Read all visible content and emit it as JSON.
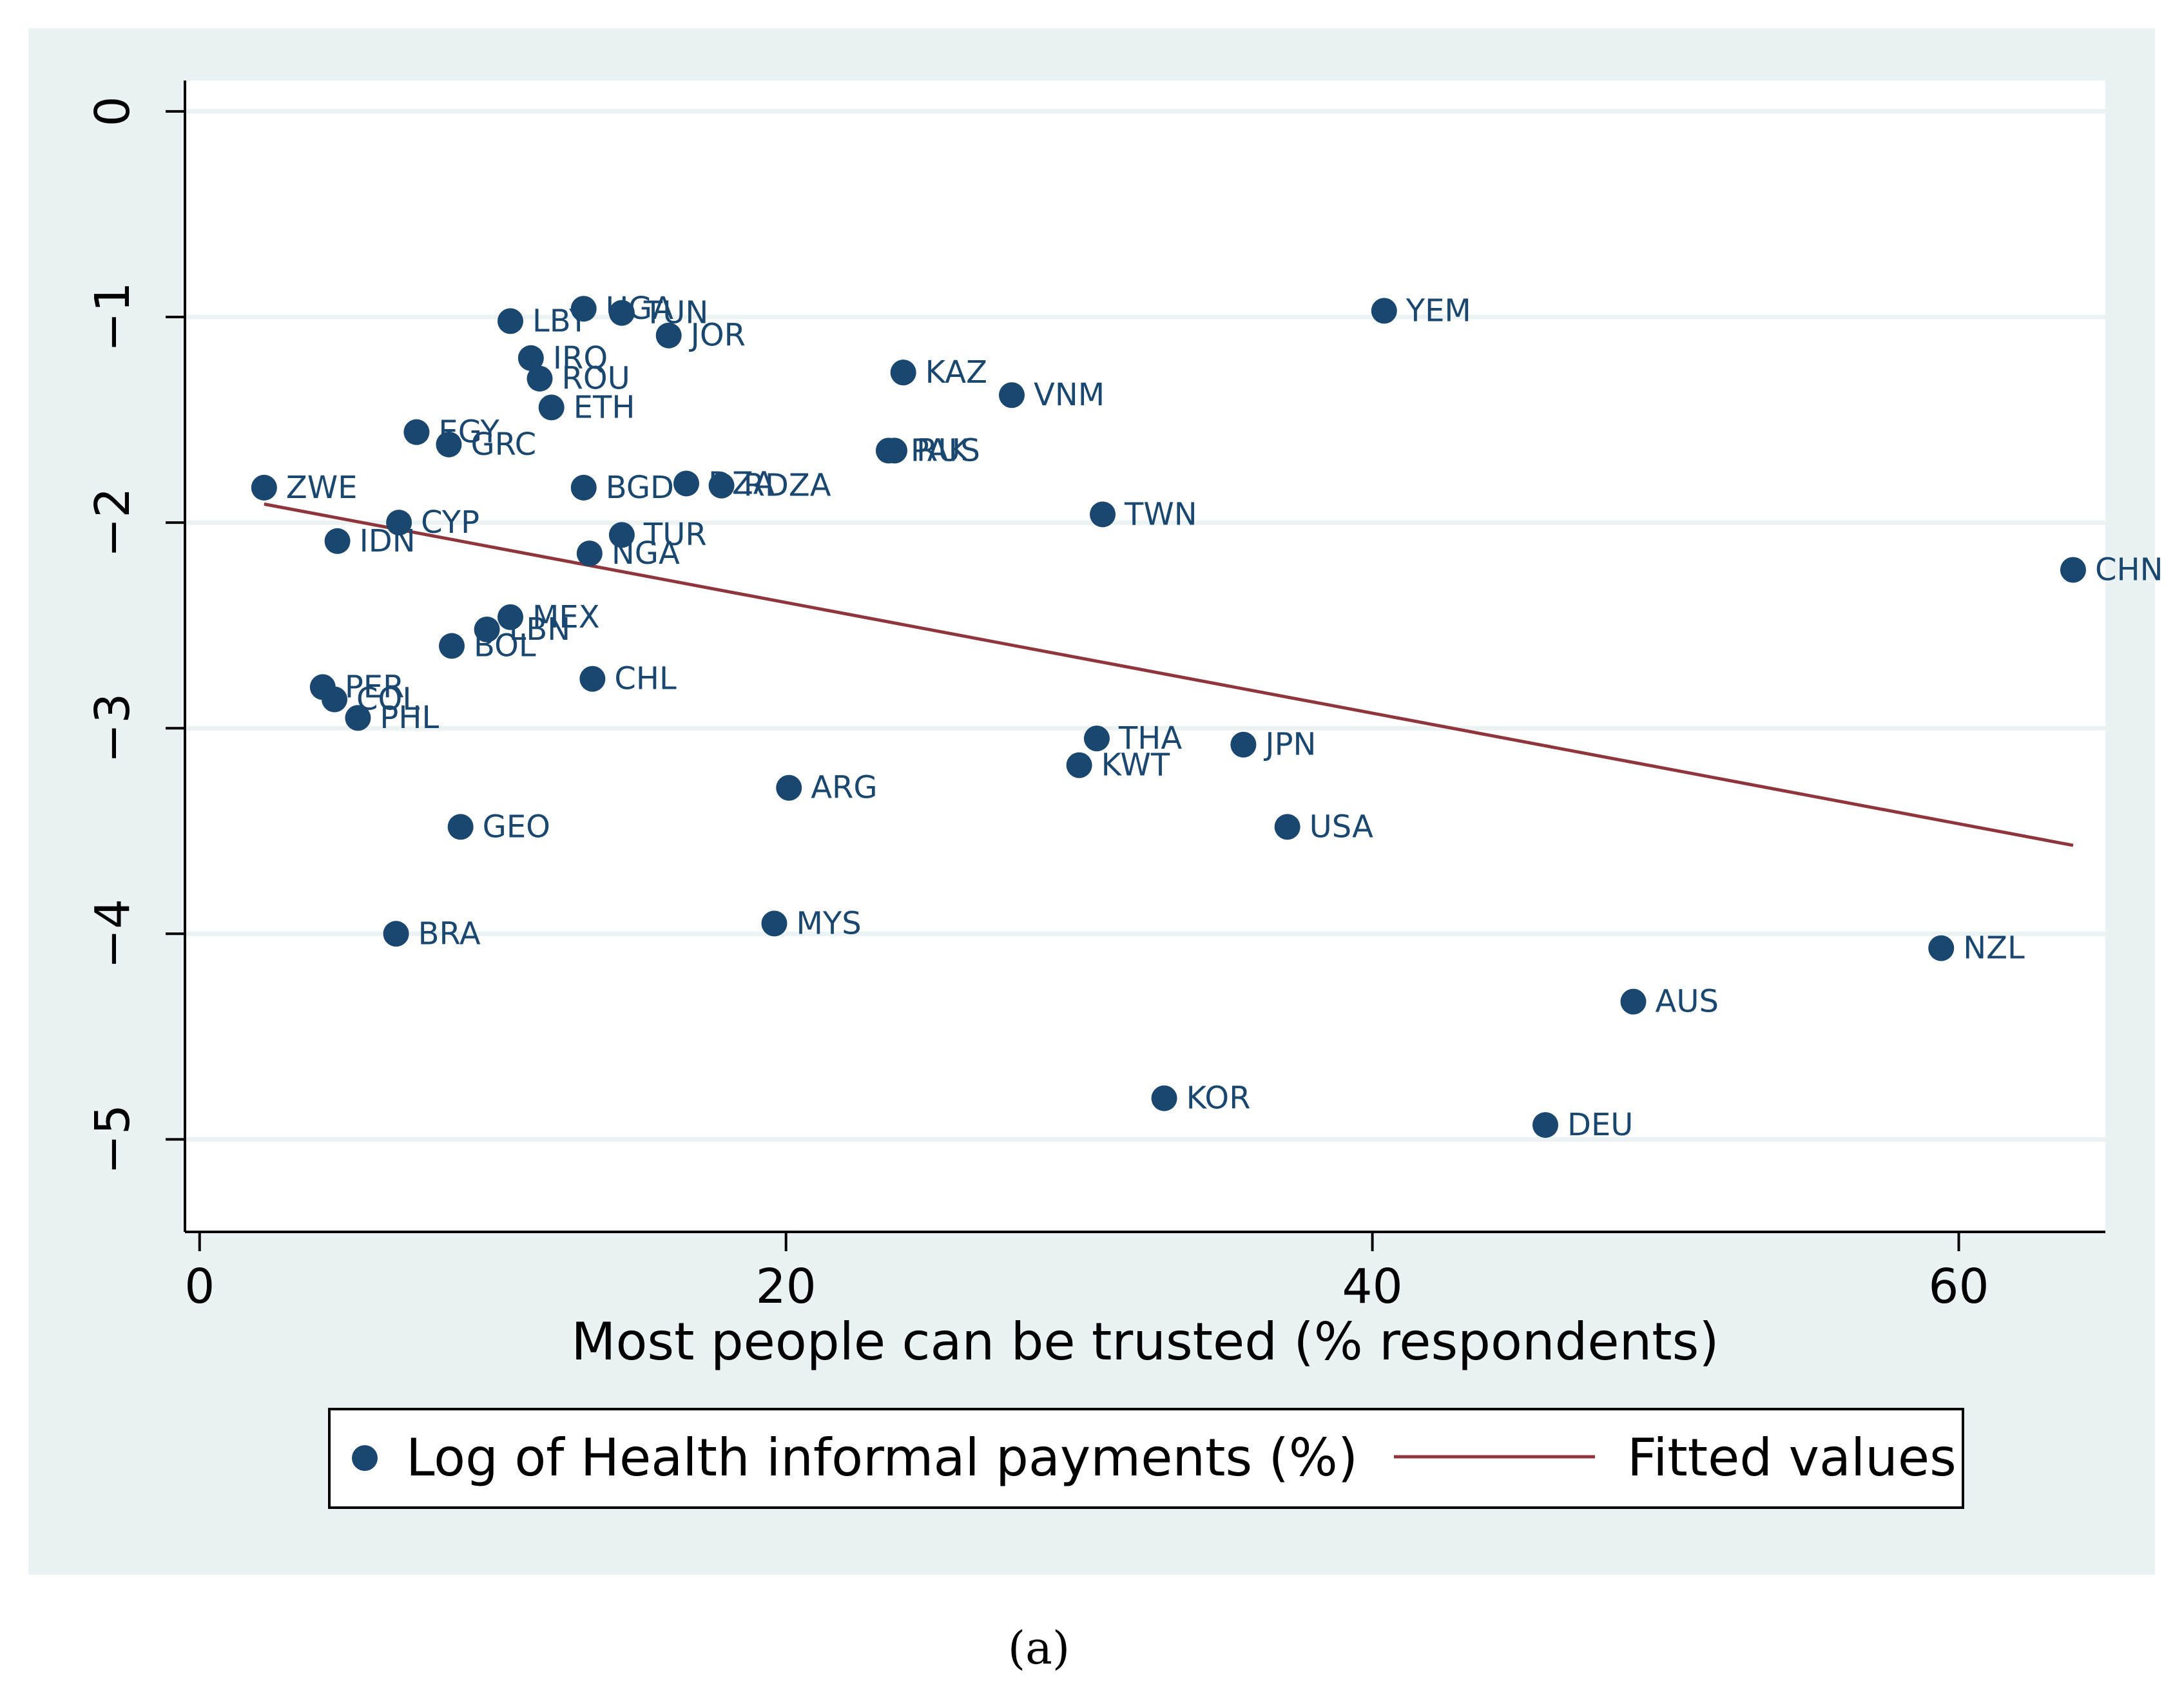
{
  "chart_data": {
    "type": "scatter",
    "title": "",
    "caption": "(a)",
    "xlabel": "Most people can be trusted (% respondents)",
    "ylabel": "",
    "xlim": [
      -0.5,
      65
    ],
    "ylim": [
      -5.45,
      0.15
    ],
    "xticks": [
      0,
      20,
      40,
      60
    ],
    "yticks": [
      0,
      -1,
      -2,
      -3,
      -4,
      -5
    ],
    "xtick_labels": [
      "0",
      "20",
      "40",
      "60"
    ],
    "ytick_labels": [
      "0",
      "−1",
      "−2",
      "−3",
      "−4",
      "−5"
    ],
    "grid": true,
    "legend_position": "bottom",
    "colors": {
      "points": "#1a476f",
      "fit": "#90353b",
      "background": "#eaf2f3"
    },
    "series": [
      {
        "name": "Log of Health informal payments (%)",
        "kind": "scatter",
        "points": [
          {
            "label": "ZWE",
            "x": 2.2,
            "y": -1.83
          },
          {
            "label": "IDN",
            "x": 4.7,
            "y": -2.09
          },
          {
            "label": "PER",
            "x": 4.2,
            "y": -2.8
          },
          {
            "label": "COL",
            "x": 4.6,
            "y": -2.86
          },
          {
            "label": "PHL",
            "x": 5.4,
            "y": -2.95
          },
          {
            "label": "CYP",
            "x": 6.8,
            "y": -2.0
          },
          {
            "label": "BRA",
            "x": 6.7,
            "y": -4.0
          },
          {
            "label": "EGY",
            "x": 7.4,
            "y": -1.56
          },
          {
            "label": "GRC",
            "x": 8.5,
            "y": -1.62
          },
          {
            "label": "BOL",
            "x": 8.6,
            "y": -2.6
          },
          {
            "label": "GEO",
            "x": 8.9,
            "y": -3.48
          },
          {
            "label": "LBY",
            "x": 10.6,
            "y": -1.02
          },
          {
            "label": "MEX",
            "x": 10.6,
            "y": -2.46
          },
          {
            "label": "LBN",
            "x": 9.8,
            "y": -2.52
          },
          {
            "label": "IRQ",
            "x": 11.3,
            "y": -1.2
          },
          {
            "label": "ROU",
            "x": 11.6,
            "y": -1.3
          },
          {
            "label": "ETH",
            "x": 12.0,
            "y": -1.44
          },
          {
            "label": "UGA",
            "x": 13.1,
            "y": -0.96
          },
          {
            "label": "TUN",
            "x": 14.4,
            "y": -0.98
          },
          {
            "label": "BGD",
            "x": 13.1,
            "y": -1.83
          },
          {
            "label": "TUR",
            "x": 14.4,
            "y": -2.06
          },
          {
            "label": "NGA",
            "x": 13.3,
            "y": -2.15
          },
          {
            "label": "CHL",
            "x": 13.4,
            "y": -2.76
          },
          {
            "label": "JOR",
            "x": 16.0,
            "y": -1.09
          },
          {
            "label": "RDZA",
            "x": 17.8,
            "y": -1.82
          },
          {
            "label": "DZA",
            "x": 16.6,
            "y": -1.81
          },
          {
            "label": "ARG",
            "x": 20.1,
            "y": -3.29
          },
          {
            "label": "MYS",
            "x": 19.6,
            "y": -3.95
          },
          {
            "label": "PAK",
            "x": 23.5,
            "y": -1.65
          },
          {
            "label": "RUS",
            "x": 23.7,
            "y": -1.65
          },
          {
            "label": "KAZ",
            "x": 24.0,
            "y": -1.27
          },
          {
            "label": "VNM",
            "x": 27.7,
            "y": -1.38
          },
          {
            "label": "KWT",
            "x": 30.0,
            "y": -3.18
          },
          {
            "label": "THA",
            "x": 30.6,
            "y": -3.05
          },
          {
            "label": "TWN",
            "x": 30.8,
            "y": -1.96
          },
          {
            "label": "KOR",
            "x": 32.9,
            "y": -4.8
          },
          {
            "label": "JPN",
            "x": 35.6,
            "y": -3.08
          },
          {
            "label": "USA",
            "x": 37.1,
            "y": -3.48
          },
          {
            "label": "YEM",
            "x": 40.4,
            "y": -0.97
          },
          {
            "label": "DEU",
            "x": 45.9,
            "y": -4.93
          },
          {
            "label": "AUS",
            "x": 48.9,
            "y": -4.33
          },
          {
            "label": "NZL",
            "x": 59.4,
            "y": -4.07
          },
          {
            "label": "CHN",
            "x": 63.9,
            "y": -2.23
          }
        ]
      },
      {
        "name": "Fitted values",
        "kind": "line",
        "points": [
          {
            "x": 2.2,
            "y": -1.91
          },
          {
            "x": 63.9,
            "y": -3.57
          }
        ]
      }
    ]
  }
}
